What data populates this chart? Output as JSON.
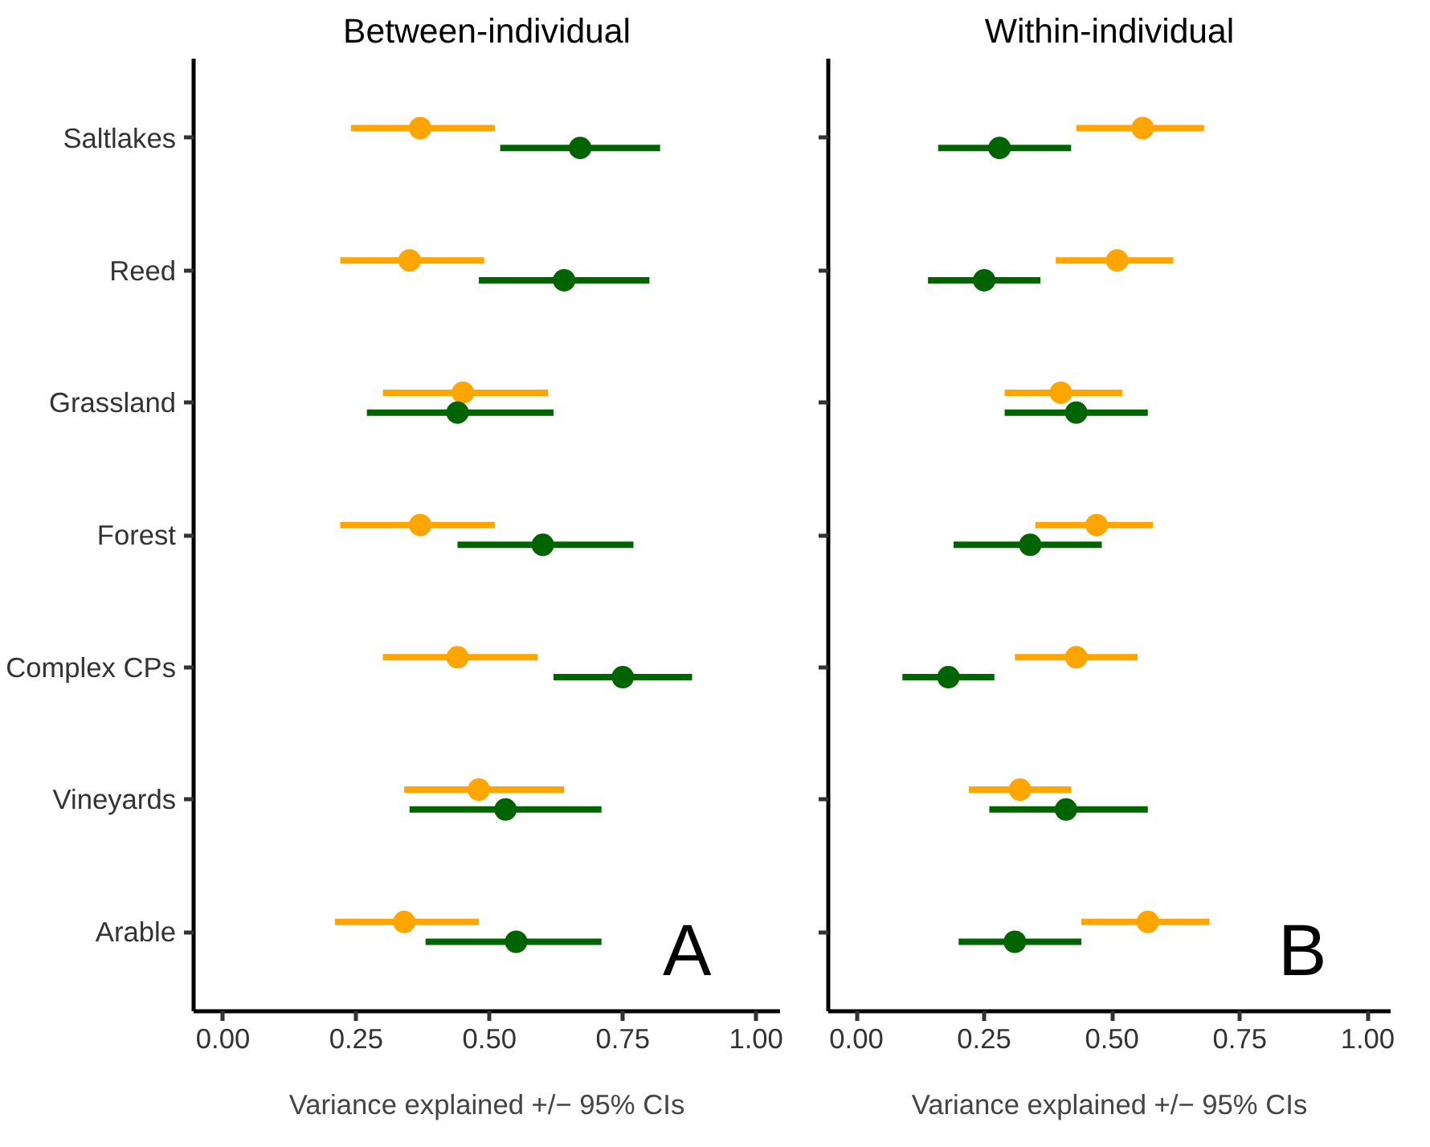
{
  "chart_data": [
    {
      "type": "scatter",
      "orientation": "horizontal",
      "title": "Between-individual",
      "xlabel": "Variance explained +/− 95% CIs",
      "categories": [
        "Saltlakes",
        "Reed",
        "Grassland",
        "Forest",
        "Complex CPs",
        "Vineyards",
        "Arable"
      ],
      "xlim": [
        -0.055,
        1.045
      ],
      "xticks": [
        {
          "value": 0,
          "label": "0.00"
        },
        {
          "value": 0.25,
          "label": "0.25"
        },
        {
          "value": 0.5,
          "label": "0.50"
        },
        {
          "value": 0.75,
          "label": "0.75"
        },
        {
          "value": 1,
          "label": "1.00"
        }
      ],
      "grid": false,
      "marker": "circle",
      "annotations": [
        "A"
      ],
      "series": [
        {
          "color": "#ffa500",
          "values": [
            0.37,
            0.35,
            0.45,
            0.37,
            0.44,
            0.48,
            0.34
          ],
          "errors": [
            [
              0.24,
              0.51
            ],
            [
              0.22,
              0.49
            ],
            [
              0.3,
              0.61
            ],
            [
              0.22,
              0.51
            ],
            [
              0.3,
              0.59
            ],
            [
              0.34,
              0.64
            ],
            [
              0.21,
              0.48
            ]
          ]
        },
        {
          "color": "#006400",
          "values": [
            0.67,
            0.64,
            0.44,
            0.6,
            0.75,
            0.53,
            0.55
          ],
          "errors": [
            [
              0.52,
              0.82
            ],
            [
              0.48,
              0.8
            ],
            [
              0.27,
              0.62
            ],
            [
              0.44,
              0.77
            ],
            [
              0.62,
              0.88
            ],
            [
              0.35,
              0.71
            ],
            [
              0.38,
              0.71
            ]
          ]
        }
      ]
    },
    {
      "type": "scatter",
      "orientation": "horizontal",
      "title": "Within-individual",
      "xlabel": "Variance explained +/− 95% CIs",
      "tick_labels": "x",
      "xlim": [
        -0.055,
        1.045
      ],
      "xticks": [
        {
          "value": 0,
          "label": "0.00"
        },
        {
          "value": 0.25,
          "label": "0.25"
        },
        {
          "value": 0.5,
          "label": "0.50"
        },
        {
          "value": 0.75,
          "label": "0.75"
        },
        {
          "value": 1,
          "label": "1.00"
        }
      ],
      "grid": false,
      "marker": "circle",
      "annotations": [
        "B"
      ],
      "series": [
        {
          "color": "#ffa500",
          "values": [
            0.56,
            0.51,
            0.4,
            0.47,
            0.43,
            0.32,
            0.57
          ],
          "errors": [
            [
              0.43,
              0.68
            ],
            [
              0.39,
              0.62
            ],
            [
              0.29,
              0.52
            ],
            [
              0.35,
              0.58
            ],
            [
              0.31,
              0.55
            ],
            [
              0.22,
              0.42
            ],
            [
              0.44,
              0.69
            ]
          ]
        },
        {
          "color": "#006400",
          "values": [
            0.28,
            0.25,
            0.43,
            0.34,
            0.18,
            0.41,
            0.31
          ],
          "errors": [
            [
              0.16,
              0.42
            ],
            [
              0.14,
              0.36
            ],
            [
              0.29,
              0.57
            ],
            [
              0.19,
              0.48
            ],
            [
              0.09,
              0.27
            ],
            [
              0.26,
              0.57
            ],
            [
              0.2,
              0.44
            ]
          ]
        }
      ]
    }
  ]
}
